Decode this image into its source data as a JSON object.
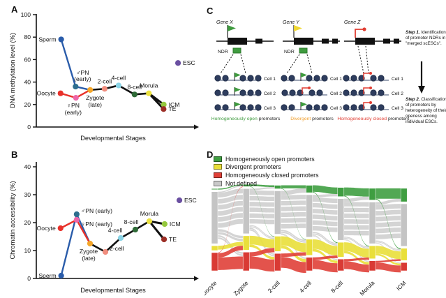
{
  "panels": {
    "a": {
      "label": "A"
    },
    "b": {
      "label": "B"
    },
    "c": {
      "label": "C",
      "ndr_label": "NDR",
      "cell_labels": [
        "Cell 1",
        "Cell 2",
        "Cell 3"
      ],
      "genes": [
        {
          "name": "Gene X",
          "flag": "open-green",
          "ndr": true,
          "cells": [
            "open",
            "open",
            "open"
          ],
          "caption_lead": "Homogeneously open",
          "caption_rest": "promoters",
          "caption_color": "#3f9b3f"
        },
        {
          "name": "Gene Y",
          "flag": "open-yellow",
          "ndr": true,
          "cells": [
            "open",
            "closed",
            "open"
          ],
          "caption_lead": "Divergent",
          "caption_rest": "promoters",
          "caption_color": "#f0a030"
        },
        {
          "name": "Gene Z",
          "flag": "closed-red",
          "ndr": false,
          "cells": [
            "closed",
            "closed",
            "closed"
          ],
          "caption_lead": "Homogeneously closed",
          "caption_rest": "promoters",
          "caption_color": "#e03c31"
        }
      ],
      "step1": {
        "lead": "Step 1.",
        "lines": [
          "Step 1. Identification",
          "of promoter NDRs in",
          "\"merged scESCs\"."
        ]
      },
      "step2": {
        "lead": "Step 2.",
        "lines": [
          "Step 2. Classification",
          "of promoters by",
          "heterogeneity of their",
          "openess among",
          "individual ESCs."
        ]
      }
    },
    "d": {
      "label": "D"
    }
  },
  "chart_data": [
    {
      "type": "line",
      "panel": "A",
      "title": "",
      "xlabel": "Developmental Stages",
      "ylabel": "DNA methylation level (%)",
      "ylim": [
        0,
        100
      ],
      "yticks": [
        0,
        20,
        40,
        60,
        80,
        100
      ],
      "points": [
        {
          "id": "sperm",
          "label": "Sperm",
          "xf": 0.162,
          "v": 78,
          "color": "#2a5caa",
          "label_pos": "left"
        },
        {
          "id": "oocyte",
          "label": "Oocyte",
          "xf": 0.158,
          "v": 30,
          "color": "#e8312a",
          "label_pos": "left"
        },
        {
          "id": "mpn",
          "label": "♂PN",
          "label2": "(early)",
          "xf": 0.256,
          "v": 36,
          "color": "#2e6e8e",
          "label_pos": "above",
          "ldx": 10
        },
        {
          "id": "fpn",
          "label": "♀PN",
          "label2": "(early)",
          "xf": 0.258,
          "v": 26,
          "color": "#ee66a8",
          "label_pos": "below",
          "ldx": -4
        },
        {
          "id": "zygote",
          "label": "Zygote",
          "label2": "(late)",
          "xf": 0.351,
          "v": 33,
          "color": "#f4a62a",
          "label_pos": "below",
          "ldx": 7
        },
        {
          "id": "c2",
          "label": "2-cell",
          "xf": 0.445,
          "v": 34,
          "color": "#f08d7e",
          "label_pos": "above"
        },
        {
          "id": "c4",
          "label": "4-cell",
          "xf": 0.536,
          "v": 37,
          "color": "#8ad4e6",
          "label_pos": "above"
        },
        {
          "id": "c8",
          "label": "8-cell",
          "xf": 0.64,
          "v": 29,
          "color": "#2f6b38",
          "label_pos": "above"
        },
        {
          "id": "morula",
          "label": "Morula",
          "xf": 0.733,
          "v": 30,
          "color": "#ece23f",
          "label_pos": "above"
        },
        {
          "id": "icm",
          "label": "ICM",
          "xf": 0.83,
          "v": 20,
          "color": "#95c83e",
          "label_pos": "right"
        },
        {
          "id": "te",
          "label": "TE",
          "xf": 0.829,
          "v": 16,
          "color": "#9c2e26",
          "label_pos": "right"
        },
        {
          "id": "esc",
          "label": "ESC",
          "xf": 0.923,
          "v": 57,
          "color": "#6a4fa1",
          "label_pos": "right"
        }
      ],
      "segments": [
        {
          "from": "sperm",
          "to": "mpn",
          "color": "#2a5caa",
          "w": 2.4
        },
        {
          "from": "mpn",
          "to": "zygote",
          "color": "#2a5caa",
          "w": 2.4
        },
        {
          "from": "oocyte",
          "to": "fpn",
          "color": "#e8312a",
          "w": 2.4
        },
        {
          "from": "fpn",
          "to": "zygote",
          "color": "#e8312a",
          "w": 2.4
        },
        {
          "from": "zygote",
          "to": "c2",
          "color": "#111111",
          "w": 2.6
        },
        {
          "from": "c2",
          "to": "c4",
          "color": "#111111",
          "w": 2.6
        },
        {
          "from": "c4",
          "to": "c8",
          "color": "#111111",
          "w": 2.6
        },
        {
          "from": "c8",
          "to": "morula",
          "color": "#111111",
          "w": 2.6
        },
        {
          "from": "morula",
          "to": "icm",
          "color": "#111111",
          "w": 3
        },
        {
          "from": "morula",
          "to": "te",
          "color": "#111111",
          "w": 3
        }
      ]
    },
    {
      "type": "line",
      "panel": "B",
      "title": "",
      "xlabel": "Developmental Stages",
      "ylabel": "Chromatin accessibility (%)",
      "ylim": [
        0,
        40
      ],
      "yticks": [
        0,
        10,
        20,
        30,
        40
      ],
      "points": [
        {
          "id": "sperm",
          "label": "Sperm",
          "xf": 0.162,
          "v": 1,
          "color": "#2a5caa",
          "label_pos": "left"
        },
        {
          "id": "oocyte",
          "label": "Oocyte",
          "xf": 0.158,
          "v": 18,
          "color": "#e8312a",
          "label_pos": "left"
        },
        {
          "id": "mpn",
          "label": "♂PN (early)",
          "xf": 0.263,
          "v": 23,
          "color": "#2e6e8e",
          "label_pos": "right-up"
        },
        {
          "id": "fpn",
          "label": "♀PN (early)",
          "xf": 0.263,
          "v": 21,
          "color": "#ee66a8",
          "label_pos": "right-down"
        },
        {
          "id": "zygote",
          "label": "Zygote",
          "label2": "(late)",
          "xf": 0.35,
          "v": 12.5,
          "color": "#f4a62a",
          "label_pos": "below",
          "ldx": -2
        },
        {
          "id": "c2",
          "label": "2-cell",
          "xf": 0.45,
          "v": 9.5,
          "color": "#f08d7e",
          "label_pos": "right-up"
        },
        {
          "id": "c4",
          "label": "4-cell",
          "xf": 0.55,
          "v": 14.5,
          "color": "#8ad4e6",
          "label_pos": "above",
          "ldx": -8
        },
        {
          "id": "c8",
          "label": "8-cell",
          "xf": 0.645,
          "v": 17.5,
          "color": "#2f6b38",
          "label_pos": "above",
          "ldx": -6
        },
        {
          "id": "morula",
          "label": "Morula",
          "xf": 0.736,
          "v": 20.5,
          "color": "#ece23f",
          "label_pos": "above"
        },
        {
          "id": "icm",
          "label": "ICM",
          "xf": 0.836,
          "v": 19.5,
          "color": "#95c83e",
          "label_pos": "right"
        },
        {
          "id": "te",
          "label": "TE",
          "xf": 0.832,
          "v": 14,
          "color": "#9c2e26",
          "label_pos": "right"
        },
        {
          "id": "esc",
          "label": "ESC",
          "xf": 0.932,
          "v": 28,
          "color": "#6a4fa1",
          "label_pos": "right"
        }
      ],
      "segments": [
        {
          "from": "sperm",
          "to": "mpn",
          "color": "#2a5caa",
          "w": 2.4
        },
        {
          "from": "oocyte",
          "to": "fpn",
          "color": "#e8312a",
          "w": 2.4
        },
        {
          "from": "mpn",
          "to": "zygote",
          "color": "#2a5caa",
          "w": 2.4
        },
        {
          "from": "fpn",
          "to": "zygote",
          "color": "#e8312a",
          "w": 2.4
        },
        {
          "from": "zygote",
          "to": "c2",
          "color": "#111111",
          "w": 2.6
        },
        {
          "from": "c2",
          "to": "c4",
          "color": "#111111",
          "w": 2.6
        },
        {
          "from": "c4",
          "to": "c8",
          "color": "#111111",
          "w": 2.6
        },
        {
          "from": "c8",
          "to": "morula",
          "color": "#111111",
          "w": 2.6
        },
        {
          "from": "morula",
          "to": "icm",
          "color": "#111111",
          "w": 3
        },
        {
          "from": "morula",
          "to": "te",
          "color": "#111111",
          "w": 3
        }
      ]
    },
    {
      "type": "alluvial",
      "panel": "D",
      "legend": [
        {
          "label": "Homogeneously open promoters",
          "color": "#3f9e41"
        },
        {
          "label": "Divergent promoters",
          "color": "#e9df3a"
        },
        {
          "label": "Homogeneously closed promoters",
          "color": "#e04038"
        },
        {
          "label": "Not defined",
          "color": "#c9c9c9"
        }
      ],
      "categories": [
        "Oocyte",
        "Zygote",
        "2-cell",
        "4-cell",
        "8-cell",
        "Morula",
        "ICM"
      ],
      "nodes": [
        {
          "green": 0.012,
          "gray": 0.6,
          "yellow": 0.055,
          "red": 0.21
        },
        {
          "green": 0.025,
          "gray": 0.52,
          "yellow": 0.165,
          "red": 0.215
        },
        {
          "green": 0.04,
          "gray": 0.5,
          "yellow": 0.175,
          "red": 0.2
        },
        {
          "green": 0.085,
          "gray": 0.49,
          "yellow": 0.185,
          "red": 0.155
        },
        {
          "green": 0.105,
          "gray": 0.48,
          "yellow": 0.17,
          "red": 0.135
        },
        {
          "green": 0.135,
          "gray": 0.48,
          "yellow": 0.15,
          "red": 0.115
        },
        {
          "green": 0.155,
          "gray": 0.49,
          "yellow": 0.14,
          "red": 0.095
        }
      ],
      "flows": [
        [
          {
            "f": "green",
            "t": "green",
            "w": 0.012
          },
          {
            "f": "gray",
            "t": "green",
            "w": 0.012
          },
          {
            "f": "gray",
            "t": "gray",
            "w": 0.42,
            "s": 6
          },
          {
            "f": "gray",
            "t": "yellow",
            "w": 0.07,
            "s": 2
          },
          {
            "f": "gray",
            "t": "red",
            "w": 0.05,
            "s": 2
          },
          {
            "f": "yellow",
            "t": "yellow",
            "w": 0.045
          },
          {
            "f": "red",
            "t": "green",
            "w": 0.006
          },
          {
            "f": "red",
            "t": "yellow",
            "w": 0.05
          },
          {
            "f": "red",
            "t": "red",
            "w": 0.145
          }
        ],
        [
          {
            "f": "green",
            "t": "green",
            "w": 0.02
          },
          {
            "f": "green",
            "t": "yellow",
            "w": 0.005
          },
          {
            "f": "gray",
            "t": "green",
            "w": 0.018
          },
          {
            "f": "gray",
            "t": "gray",
            "w": 0.4,
            "s": 6
          },
          {
            "f": "gray",
            "t": "yellow",
            "w": 0.03,
            "s": 2
          },
          {
            "f": "gray",
            "t": "red",
            "w": 0.04,
            "s": 2
          },
          {
            "f": "yellow",
            "t": "yellow",
            "w": 0.1
          },
          {
            "f": "yellow",
            "t": "red",
            "w": 0.03
          },
          {
            "f": "red",
            "t": "yellow",
            "w": 0.05
          },
          {
            "f": "red",
            "t": "red",
            "w": 0.14
          }
        ],
        [
          {
            "f": "green",
            "t": "green",
            "w": 0.035
          },
          {
            "f": "green",
            "t": "yellow",
            "w": 0.005
          },
          {
            "f": "gray",
            "t": "green",
            "w": 0.05
          },
          {
            "f": "gray",
            "t": "gray",
            "w": 0.4,
            "s": 6
          },
          {
            "f": "gray",
            "t": "yellow",
            "w": 0.04,
            "s": 2
          },
          {
            "f": "gray",
            "t": "red",
            "w": 0.02,
            "s": 2
          },
          {
            "f": "yellow",
            "t": "yellow",
            "w": 0.105
          },
          {
            "f": "yellow",
            "t": "red",
            "w": 0.035
          },
          {
            "f": "red",
            "t": "yellow",
            "w": 0.04
          },
          {
            "f": "red",
            "t": "red",
            "w": 0.125
          }
        ],
        [
          {
            "f": "green",
            "t": "green",
            "w": 0.075
          },
          {
            "f": "green",
            "t": "yellow",
            "w": 0.008
          },
          {
            "f": "gray",
            "t": "green",
            "w": 0.028
          },
          {
            "f": "gray",
            "t": "gray",
            "w": 0.4,
            "s": 6
          },
          {
            "f": "gray",
            "t": "yellow",
            "w": 0.035,
            "s": 2
          },
          {
            "f": "gray",
            "t": "red",
            "w": 0.018,
            "s": 2
          },
          {
            "f": "yellow",
            "t": "yellow",
            "w": 0.11
          },
          {
            "f": "yellow",
            "t": "red",
            "w": 0.03
          },
          {
            "f": "red",
            "t": "yellow",
            "w": 0.03
          },
          {
            "f": "red",
            "t": "red",
            "w": 0.105
          }
        ],
        [
          {
            "f": "green",
            "t": "green",
            "w": 0.095
          },
          {
            "f": "green",
            "t": "yellow",
            "w": 0.008
          },
          {
            "f": "gray",
            "t": "green",
            "w": 0.038
          },
          {
            "f": "gray",
            "t": "gray",
            "w": 0.4,
            "s": 6
          },
          {
            "f": "gray",
            "t": "yellow",
            "w": 0.028,
            "s": 2
          },
          {
            "f": "gray",
            "t": "red",
            "w": 0.015,
            "s": 2
          },
          {
            "f": "yellow",
            "t": "yellow",
            "w": 0.1
          },
          {
            "f": "yellow",
            "t": "red",
            "w": 0.028
          },
          {
            "f": "red",
            "t": "yellow",
            "w": 0.025
          },
          {
            "f": "red",
            "t": "red",
            "w": 0.09
          }
        ],
        [
          {
            "f": "green",
            "t": "green",
            "w": 0.12
          },
          {
            "f": "green",
            "t": "yellow",
            "w": 0.01
          },
          {
            "f": "gray",
            "t": "green",
            "w": 0.033
          },
          {
            "f": "gray",
            "t": "gray",
            "w": 0.41,
            "s": 6
          },
          {
            "f": "gray",
            "t": "yellow",
            "w": 0.025,
            "s": 2
          },
          {
            "f": "gray",
            "t": "red",
            "w": 0.012,
            "s": 2
          },
          {
            "f": "yellow",
            "t": "yellow",
            "w": 0.09
          },
          {
            "f": "yellow",
            "t": "red",
            "w": 0.022
          },
          {
            "f": "red",
            "t": "yellow",
            "w": 0.02
          },
          {
            "f": "red",
            "t": "red",
            "w": 0.08
          }
        ]
      ]
    }
  ]
}
